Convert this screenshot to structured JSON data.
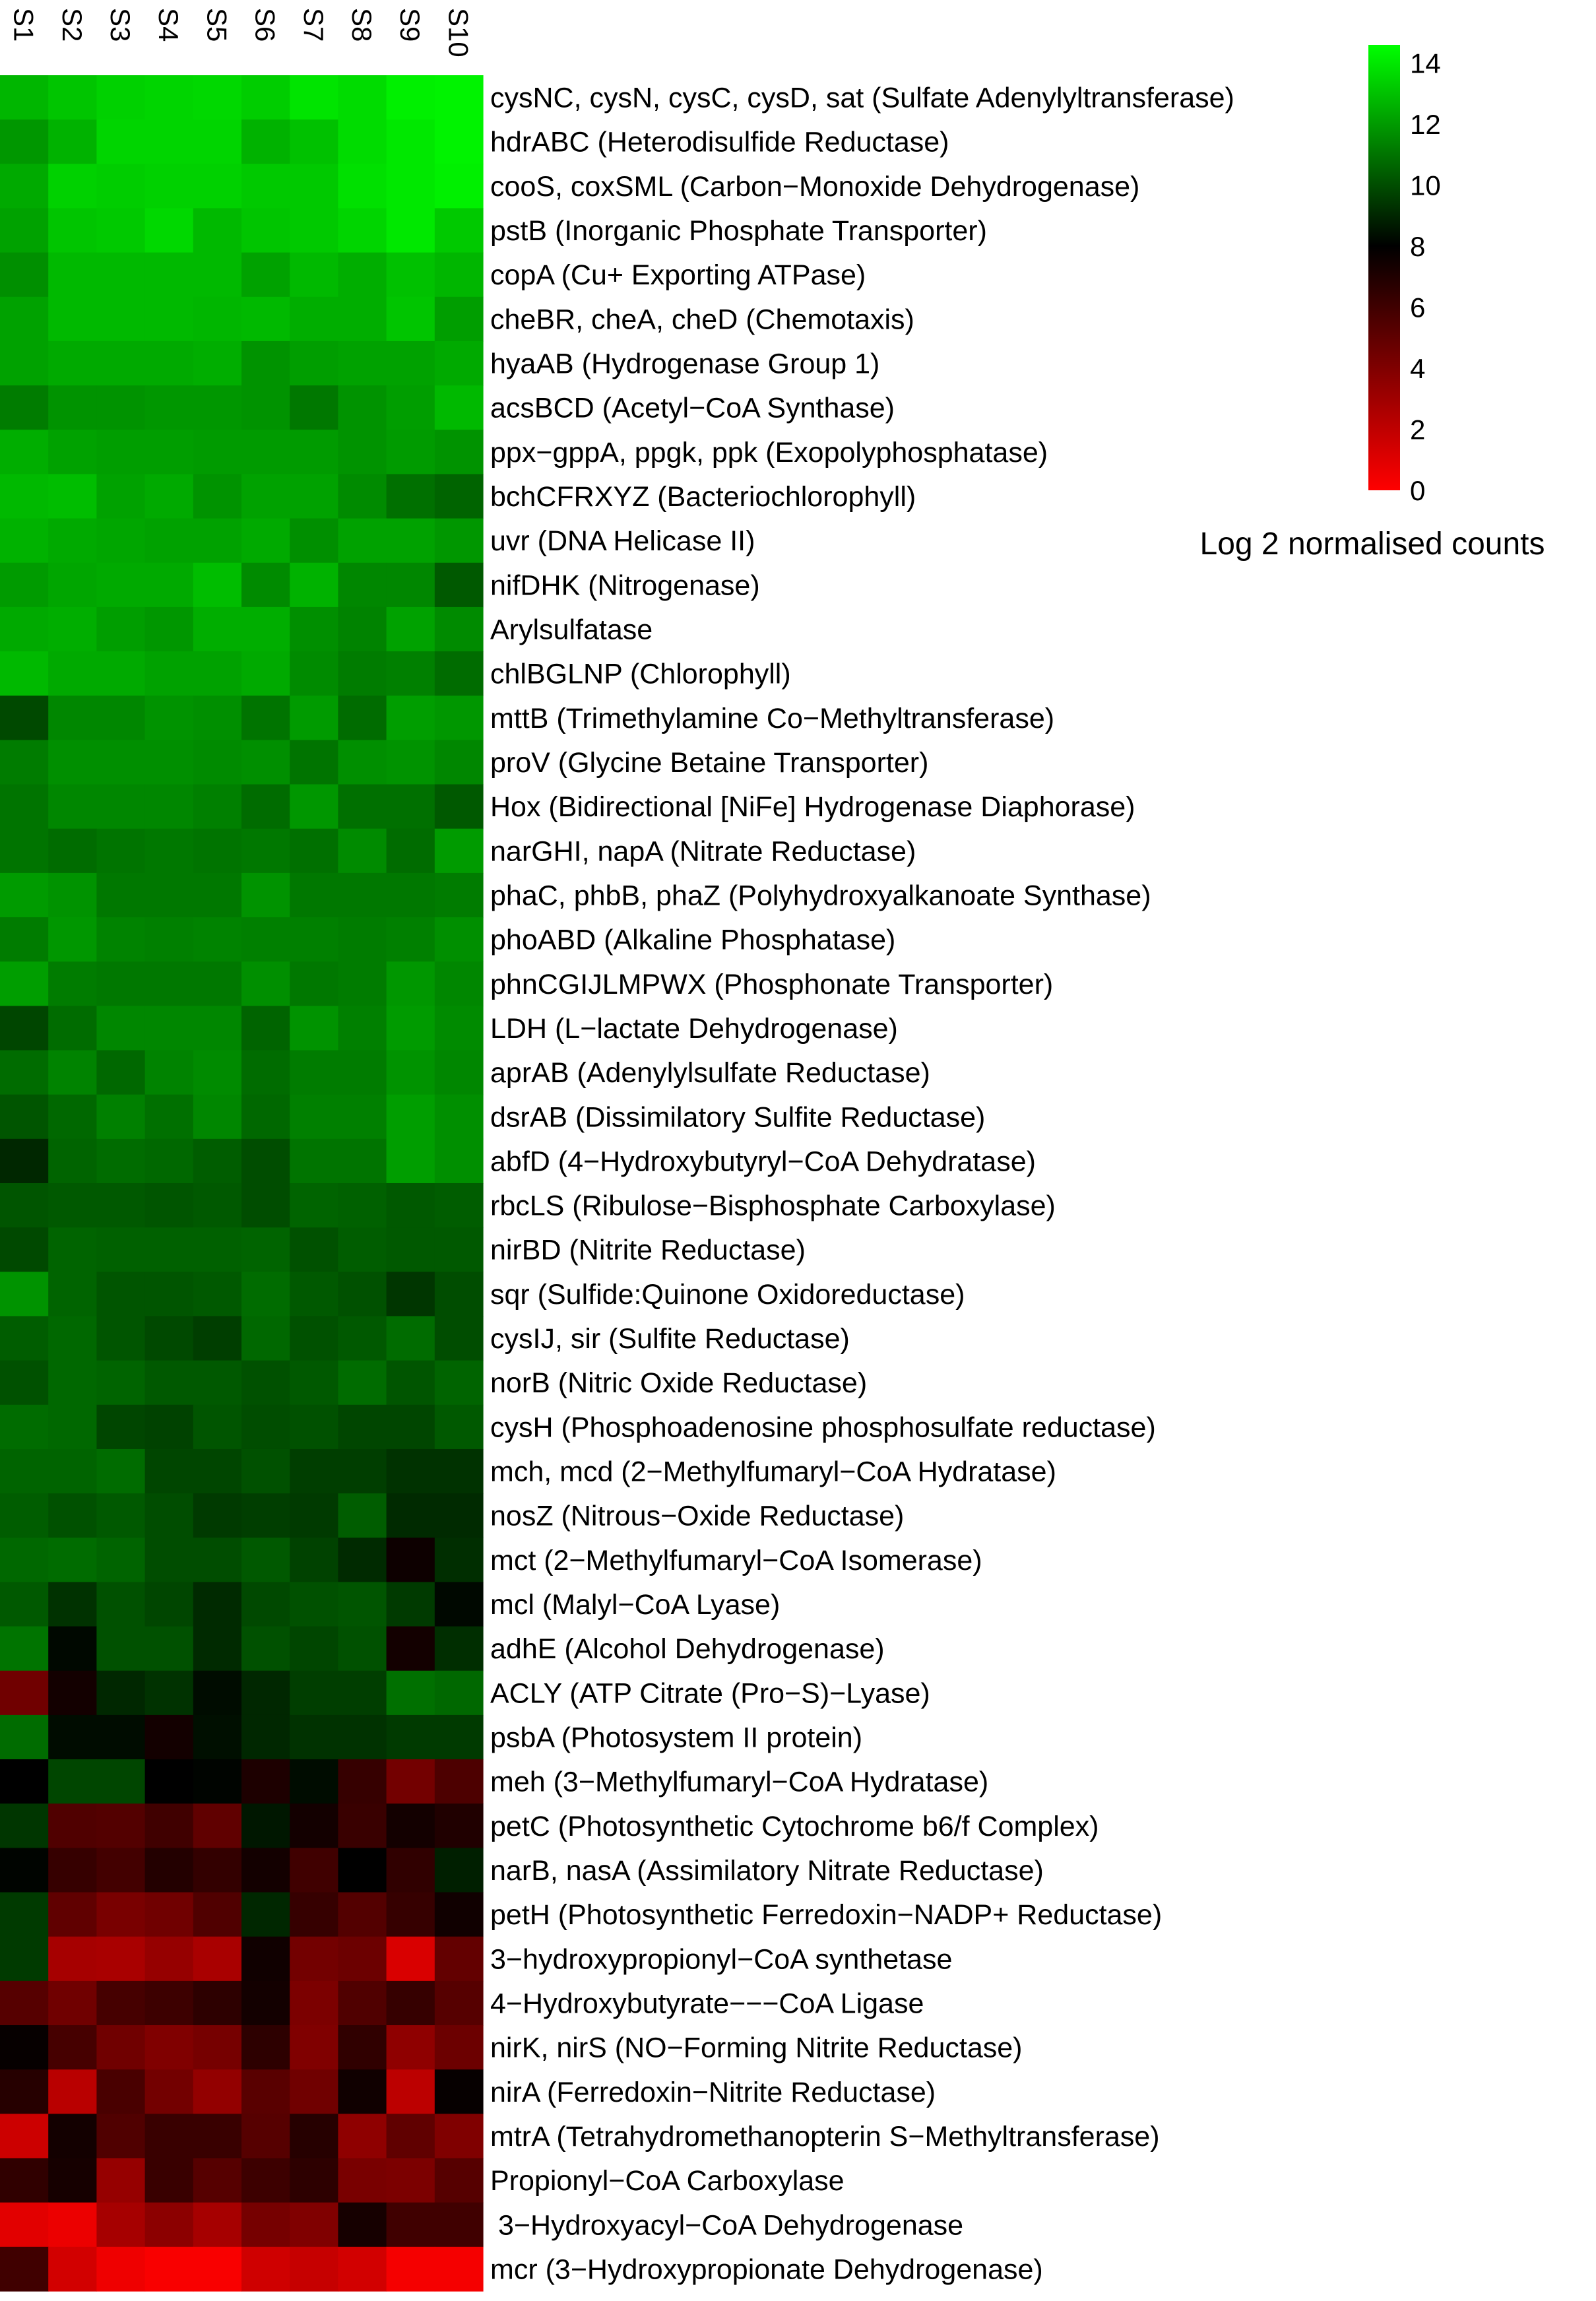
{
  "chart_data": {
    "type": "heatmap",
    "title": "",
    "columns": [
      "S1",
      "S2",
      "S3",
      "S4",
      "S5",
      "S6",
      "S7",
      "S8",
      "S9",
      "S10"
    ],
    "rows": [
      "cysNC, cysN, cysC, cysD, sat (Sulfate Adenylyltransferase)",
      "hdrABC (Heterodisulfide Reductase)",
      "cooS, coxSML (Carbon−Monoxide Dehydrogenase)",
      "pstB (Inorganic Phosphate Transporter)",
      "copA (Cu+ Exporting ATPase)",
      "cheBR, cheA, cheD (Chemotaxis)",
      "hyaAB (Hydrogenase Group 1)",
      "acsBCD (Acetyl−CoA Synthase)",
      "ppx−gppA, ppgk, ppk (Exopolyphosphatase)",
      "bchCFRXYZ (Bacteriochlorophyll)",
      "uvr (DNA Helicase II)",
      "nifDHK (Nitrogenase)",
      "Arylsulfatase",
      "chlBGLNP (Chlorophyll)",
      "mttB (Trimethylamine Co−Methyltransferase)",
      "proV (Glycine Betaine Transporter)",
      "Hox (Bidirectional [NiFe] Hydrogenase Diaphorase)",
      "narGHI, napA (Nitrate Reductase)",
      "phaC, phbB, phaZ (Polyhydroxyalkanoate Synthase)",
      "phoABD (Alkaline Phosphatase)",
      "phnCGIJLMPWX (Phosphonate Transporter)",
      "LDH (L−lactate Dehydrogenase)",
      "aprAB (Adenylylsulfate Reductase)",
      "dsrAB (Dissimilatory Sulfite Reductase)",
      "abfD (4−Hydroxybutyryl−CoA Dehydratase)",
      "rbcLS (Ribulose−Bisphosphate Carboxylase)",
      "nirBD (Nitrite Reductase)",
      "sqr (Sulfide:Quinone Oxidoreductase)",
      "cysIJ, sir (Sulfite Reductase)",
      "norB (Nitric Oxide Reductase)",
      "cysH (Phosphoadenosine phosphosulfate reductase)",
      "mch, mcd (2−Methylfumaryl−CoA Hydratase)",
      "nosZ (Nitrous−Oxide Reductase)",
      "mct (2−Methylfumaryl−CoA Isomerase)",
      "mcl (Malyl−CoA Lyase)",
      "adhE (Alcohol Dehydrogenase)",
      "ACLY (ATP Citrate (Pro−S)−Lyase)",
      "psbA (Photosystem II protein)",
      "meh (3−Methylfumaryl−CoA Hydratase)",
      "petC (Photosynthetic Cytochrome b6/f Complex)",
      "narB, nasA (Assimilatory Nitrate Reductase)",
      "petH (Photosynthetic Ferredoxin−NADP+ Reductase)",
      "3−hydroxypropionyl−CoA synthetase",
      "4−Hydroxybutyrate−−−CoA Ligase",
      "nirK, nirS (NO−Forming Nitrite Reductase)",
      "nirA (Ferredoxin−Nitrite Reductase)",
      "mtrA (Tetrahydromethanopterin S−Methyltransferase)",
      "Propionyl−CoA Carboxylase",
      " 3−Hydroxyacyl−CoA Dehydrogenase",
      "mcr (3−Hydroxypropionate Dehydrogenase)"
    ],
    "values": [
      [
        12.7,
        13.1,
        13.4,
        13.5,
        13.6,
        13.3,
        13.9,
        13.7,
        14.2,
        14.3
      ],
      [
        11.9,
        12.6,
        13.5,
        13.5,
        13.5,
        12.6,
        13.0,
        13.7,
        14.0,
        14.3
      ],
      [
        12.4,
        13.4,
        13.3,
        13.4,
        13.4,
        13.2,
        13.2,
        13.8,
        14.0,
        14.2
      ],
      [
        12.2,
        13.1,
        13.2,
        13.6,
        12.8,
        13.1,
        13.2,
        13.5,
        14.0,
        13.2
      ],
      [
        11.7,
        12.8,
        12.8,
        12.8,
        12.8,
        12.2,
        12.8,
        12.5,
        13.0,
        12.7
      ],
      [
        12.2,
        12.8,
        12.8,
        12.8,
        12.7,
        12.8,
        12.5,
        12.5,
        13.1,
        12.1
      ],
      [
        12.2,
        12.4,
        12.4,
        12.4,
        12.5,
        11.8,
        12.1,
        12.2,
        12.2,
        12.4
      ],
      [
        11.2,
        11.8,
        11.8,
        11.9,
        11.9,
        11.8,
        11.1,
        11.8,
        12.1,
        12.8
      ],
      [
        12.5,
        12.2,
        12.1,
        12.1,
        12.0,
        12.0,
        12.0,
        11.8,
        12.0,
        11.8
      ],
      [
        12.8,
        12.9,
        12.2,
        12.4,
        11.8,
        12.2,
        12.2,
        11.6,
        10.9,
        10.6
      ],
      [
        12.6,
        12.4,
        12.3,
        12.2,
        12.2,
        12.4,
        11.7,
        12.2,
        12.2,
        11.9
      ],
      [
        12.0,
        12.3,
        12.4,
        12.4,
        12.9,
        11.6,
        12.6,
        11.5,
        11.5,
        10.3
      ],
      [
        12.4,
        12.5,
        12.1,
        11.9,
        12.5,
        12.5,
        11.7,
        11.4,
        12.2,
        11.6
      ],
      [
        12.8,
        12.4,
        12.4,
        12.2,
        12.2,
        12.4,
        11.6,
        11.2,
        11.3,
        10.8
      ],
      [
        9.9,
        11.5,
        11.5,
        11.8,
        11.7,
        11.0,
        12.0,
        10.8,
        12.1,
        11.9
      ],
      [
        11.2,
        11.7,
        11.7,
        11.7,
        11.6,
        11.7,
        11.0,
        11.7,
        11.8,
        11.5
      ],
      [
        11.0,
        11.5,
        11.5,
        11.5,
        11.3,
        10.8,
        11.9,
        10.9,
        10.9,
        10.3
      ],
      [
        11.0,
        10.8,
        11.0,
        11.1,
        11.0,
        11.1,
        10.9,
        11.6,
        10.8,
        12.0
      ],
      [
        12.0,
        11.8,
        11.1,
        11.1,
        11.1,
        11.8,
        11.1,
        11.1,
        11.1,
        11.2
      ],
      [
        11.2,
        11.9,
        11.4,
        11.3,
        11.4,
        11.3,
        11.3,
        11.2,
        11.3,
        11.7
      ],
      [
        12.1,
        11.2,
        11.1,
        11.1,
        11.1,
        11.7,
        11.1,
        11.2,
        11.9,
        11.5
      ],
      [
        9.8,
        10.8,
        11.5,
        11.5,
        11.5,
        10.6,
        11.8,
        11.3,
        12.0,
        11.6
      ],
      [
        10.8,
        11.4,
        10.7,
        11.4,
        11.6,
        10.8,
        11.2,
        11.2,
        11.8,
        11.5
      ],
      [
        10.2,
        10.7,
        11.3,
        10.9,
        11.5,
        10.7,
        11.3,
        11.3,
        12.1,
        11.7
      ],
      [
        9.0,
        10.6,
        10.8,
        10.7,
        10.4,
        10.0,
        11.0,
        11.0,
        12.1,
        11.7
      ],
      [
        10.2,
        10.3,
        10.3,
        10.2,
        10.3,
        10.0,
        10.6,
        10.5,
        10.3,
        10.4
      ],
      [
        9.9,
        10.6,
        10.5,
        10.5,
        10.5,
        10.6,
        10.1,
        10.4,
        10.3,
        10.3
      ],
      [
        11.8,
        10.6,
        10.2,
        10.2,
        10.3,
        10.8,
        10.3,
        10.1,
        9.4,
        10.0
      ],
      [
        10.4,
        10.7,
        10.2,
        9.9,
        9.6,
        10.7,
        10.1,
        10.3,
        10.8,
        10.0
      ],
      [
        10.1,
        10.7,
        10.6,
        10.3,
        10.3,
        10.1,
        10.3,
        10.8,
        10.2,
        10.6
      ],
      [
        10.8,
        10.7,
        9.8,
        9.7,
        10.2,
        10.0,
        10.1,
        9.8,
        9.8,
        10.3
      ],
      [
        10.6,
        10.6,
        10.8,
        9.8,
        9.8,
        10.1,
        9.6,
        9.6,
        9.3,
        9.3
      ],
      [
        10.4,
        10.1,
        10.3,
        10.0,
        9.5,
        9.6,
        9.5,
        10.4,
        9.1,
        9.1
      ],
      [
        10.7,
        10.8,
        10.6,
        10.0,
        10.0,
        10.3,
        9.7,
        9.1,
        7.6,
        9.2
      ],
      [
        10.3,
        9.3,
        10.1,
        9.8,
        9.1,
        9.9,
        10.1,
        10.2,
        9.5,
        8.2
      ],
      [
        11.0,
        8.2,
        10.1,
        10.1,
        9.1,
        10.1,
        9.8,
        10.1,
        7.4,
        9.2
      ],
      [
        4.5,
        7.4,
        9.0,
        9.3,
        8.3,
        9.0,
        9.6,
        9.6,
        10.9,
        10.7
      ],
      [
        10.8,
        8.3,
        8.3,
        7.4,
        8.4,
        9.0,
        9.3,
        9.3,
        9.5,
        9.5
      ],
      [
        8.0,
        9.8,
        9.8,
        8.0,
        8.1,
        7.1,
        8.3,
        6.3,
        4.4,
        5.6
      ],
      [
        9.4,
        5.5,
        5.4,
        6.0,
        5.0,
        8.6,
        7.4,
        6.2,
        7.4,
        7.0
      ],
      [
        8.1,
        6.3,
        5.9,
        6.9,
        6.4,
        7.4,
        6.0,
        8.0,
        6.5,
        8.8
      ],
      [
        9.5,
        5.0,
        4.2,
        4.5,
        5.5,
        9.0,
        6.3,
        5.4,
        6.3,
        7.5
      ],
      [
        9.5,
        2.8,
        2.7,
        3.3,
        2.7,
        7.5,
        4.4,
        4.6,
        1.2,
        4.9
      ],
      [
        5.3,
        4.5,
        5.8,
        6.1,
        6.6,
        7.4,
        4.1,
        5.5,
        6.3,
        5.3
      ],
      [
        7.8,
        5.8,
        4.5,
        4.0,
        4.3,
        6.6,
        4.0,
        6.5,
        3.5,
        4.6
      ],
      [
        6.8,
        2.2,
        5.7,
        4.4,
        3.4,
        5.2,
        4.5,
        7.5,
        2.1,
        7.8
      ],
      [
        1.6,
        7.4,
        5.5,
        6.2,
        6.2,
        5.3,
        6.8,
        3.5,
        5.0,
        4.0
      ],
      [
        6.5,
        7.3,
        3.3,
        6.2,
        5.3,
        6.1,
        6.6,
        4.2,
        4.1,
        5.3
      ],
      [
        0.9,
        0.6,
        2.8,
        3.6,
        2.8,
        4.3,
        4.0,
        7.3,
        6.0,
        6.0
      ],
      [
        6.0,
        1.4,
        0.5,
        0.2,
        0.2,
        1.5,
        1.8,
        1.4,
        0.3,
        0.3
      ]
    ],
    "color_scale": {
      "min": 0,
      "mid": 8,
      "max": 14.6,
      "low_color": "#ff0000",
      "mid_color": "#000000",
      "high_color": "#00ff00"
    },
    "colorbar_ticks": [
      14,
      12,
      10,
      8,
      6,
      4,
      2,
      0
    ],
    "colorbar_label": "Log 2 normalised counts",
    "legend_position": "top-right",
    "grid": false
  }
}
